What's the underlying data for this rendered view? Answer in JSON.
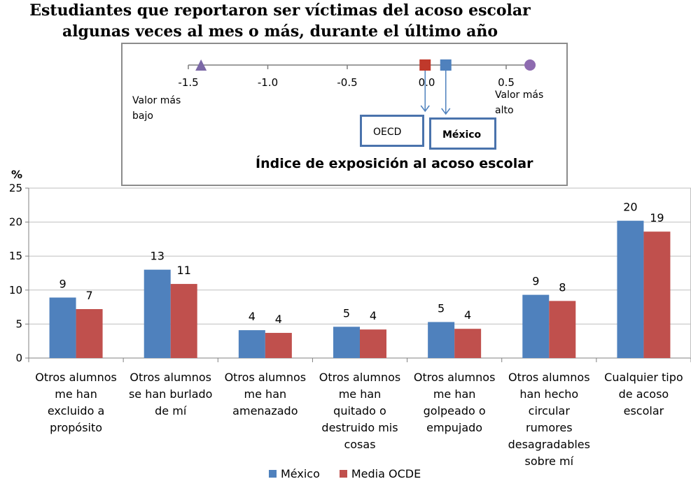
{
  "title_line1": "Estudiantes que reportaron ser víctimas del acoso escolar",
  "title_line2": "algunas veces al mes o más, durante el último año",
  "index_panel": {
    "title": "Índice de exposición al acoso escolar",
    "ticks": [
      "-1.5",
      "-1.0",
      "-0.5",
      "0.0",
      "0.5"
    ],
    "low_label": [
      "Valor más",
      "bajo"
    ],
    "high_label": [
      "Valor más",
      "alto"
    ],
    "oecd_label": "OECD",
    "mexico_label": "México",
    "points": {
      "lowest": -1.42,
      "oecd": -0.01,
      "mexico": 0.12,
      "highest": 0.65
    },
    "colors": {
      "lowest": "#7b68a6",
      "oecd": "#c0392b",
      "mexico": "#4f81bd",
      "highest": "#8e6bb0"
    }
  },
  "chart_data": {
    "type": "bar",
    "ylabel": "%",
    "ylim": [
      0,
      25
    ],
    "yticks": [
      "0",
      "5",
      "10",
      "15",
      "20",
      "25"
    ],
    "categories": [
      [
        "Otros alumnos",
        "me han",
        "excluido a",
        "propósito"
      ],
      [
        "Otros alumnos",
        "se han burlado",
        "de mí"
      ],
      [
        "Otros alumnos",
        "me han",
        "amenazado"
      ],
      [
        "Otros alumnos",
        "me han",
        "quitado o",
        "destruido mis",
        "cosas"
      ],
      [
        "Otros alumnos",
        "me han",
        "golpeado o",
        "empujado"
      ],
      [
        "Otros alumnos",
        "han hecho",
        "circular",
        "rumores",
        "desagradables",
        "sobre mí"
      ],
      [
        "Cualquier tipo",
        "de acoso",
        "escolar"
      ]
    ],
    "series": [
      {
        "name": "México",
        "color": "#4f81bd",
        "values": [
          8.9,
          13.0,
          4.1,
          4.6,
          5.3,
          9.3,
          20.2
        ],
        "labels": [
          "9",
          "13",
          "4",
          "5",
          "5",
          "9",
          "20"
        ]
      },
      {
        "name": "Media OCDE",
        "color": "#c0504d",
        "values": [
          7.2,
          10.9,
          3.7,
          4.2,
          4.3,
          8.4,
          18.6
        ],
        "labels": [
          "7",
          "11",
          "4",
          "4",
          "4",
          "8",
          "19"
        ]
      }
    ],
    "grid": true,
    "legend": "bottom"
  }
}
